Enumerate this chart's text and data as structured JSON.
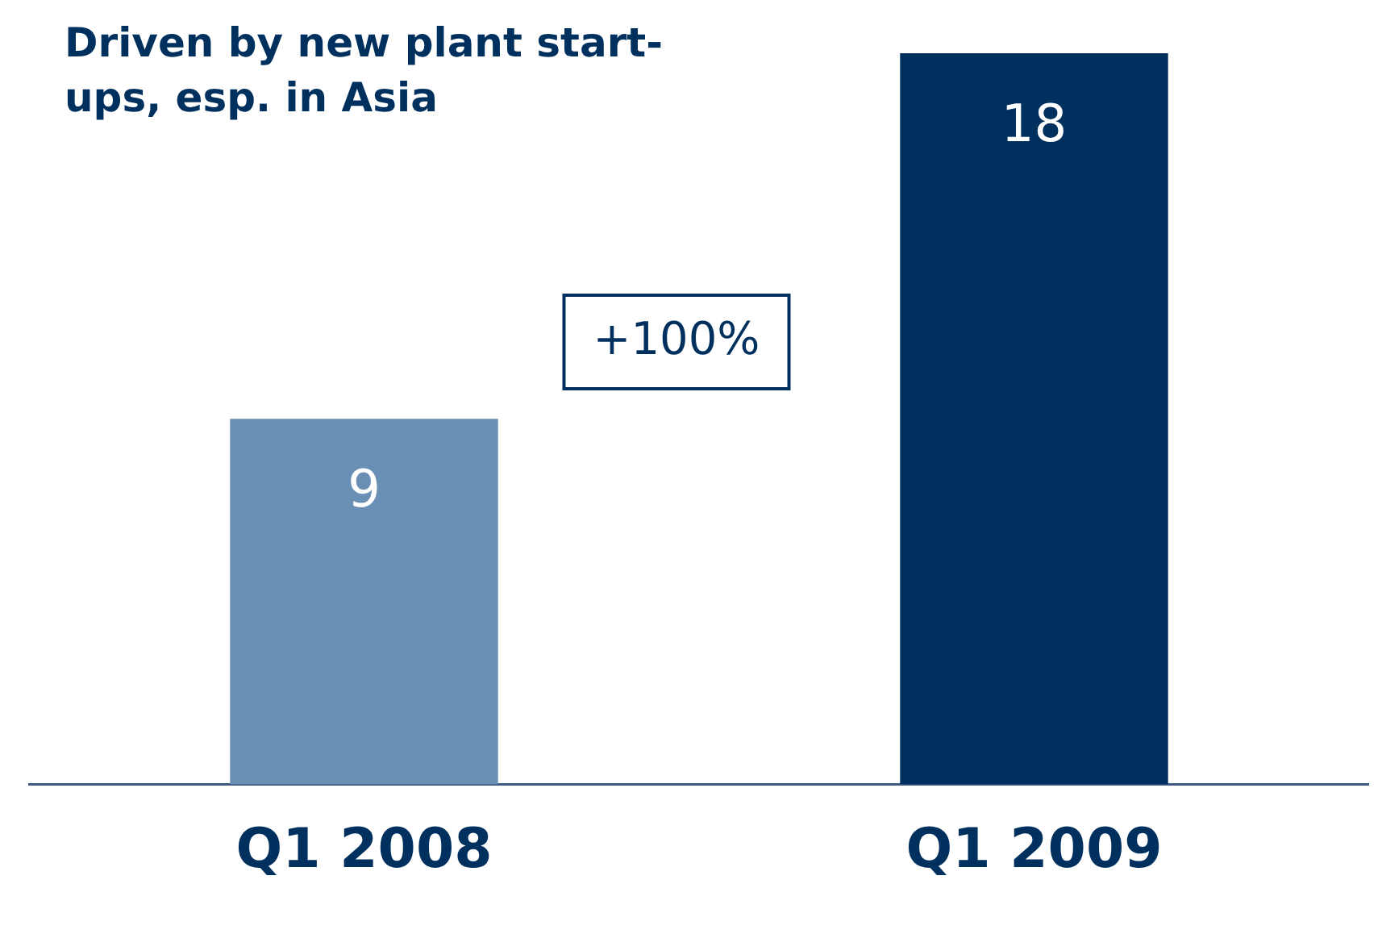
{
  "chart_data": {
    "type": "bar",
    "title": "Driven by new plant start-ups, esp. in Asia",
    "categories": [
      "Q1 2008",
      "Q1 2009"
    ],
    "values": [
      9,
      18
    ],
    "colors": [
      "#6a8fb5",
      "#00305e"
    ],
    "data_labels": true,
    "annotations": [
      "+100%"
    ],
    "legend": false,
    "grid": false
  }
}
